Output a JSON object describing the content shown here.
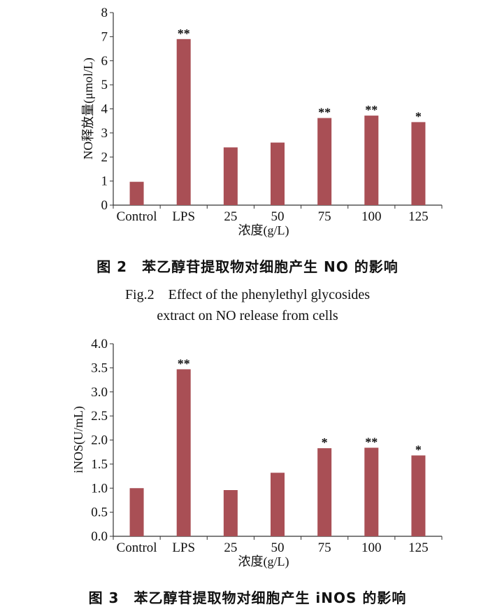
{
  "colors": {
    "bar": "#a94f55",
    "axis": "#333333"
  },
  "chart_data": [
    {
      "type": "bar",
      "caption_cn": "图 2　苯乙醇苷提取物对细胞产生 NO 的影响",
      "caption_en": [
        "Fig.2　Effect of the phenylethyl glycosides",
        "extract on NO release from cells"
      ],
      "categories": [
        "Control",
        "LPS",
        "25",
        "50",
        "75",
        "100",
        "125"
      ],
      "values": [
        0.97,
        6.9,
        2.4,
        2.6,
        3.62,
        3.72,
        3.45
      ],
      "significance": [
        "",
        "**",
        "",
        "",
        "**",
        "**",
        "*"
      ],
      "xlabel": "浓度(g/L)",
      "ylabel": "NO释放量(μmol/L)",
      "ylim": [
        0,
        8
      ],
      "yticks": [
        "0",
        "1",
        "2",
        "3",
        "4",
        "5",
        "6",
        "7",
        "8"
      ],
      "grid": false
    },
    {
      "type": "bar",
      "caption_cn": "图 3　苯乙醇苷提取物对细胞产生 iNOS 的影响",
      "categories": [
        "Control",
        "LPS",
        "25",
        "50",
        "75",
        "100",
        "125"
      ],
      "values": [
        1.0,
        3.47,
        0.96,
        1.32,
        1.83,
        1.84,
        1.68
      ],
      "significance": [
        "",
        "**",
        "",
        "",
        "*",
        "**",
        "*"
      ],
      "xlabel": "浓度(g/L)",
      "ylabel": "iNOS(U/mL)",
      "ylim": [
        0,
        4
      ],
      "yticks": [
        "0.0",
        "0.5",
        "1.0",
        "1.5",
        "2.0",
        "2.5",
        "3.0",
        "3.5",
        "4.0"
      ],
      "grid": false
    }
  ]
}
